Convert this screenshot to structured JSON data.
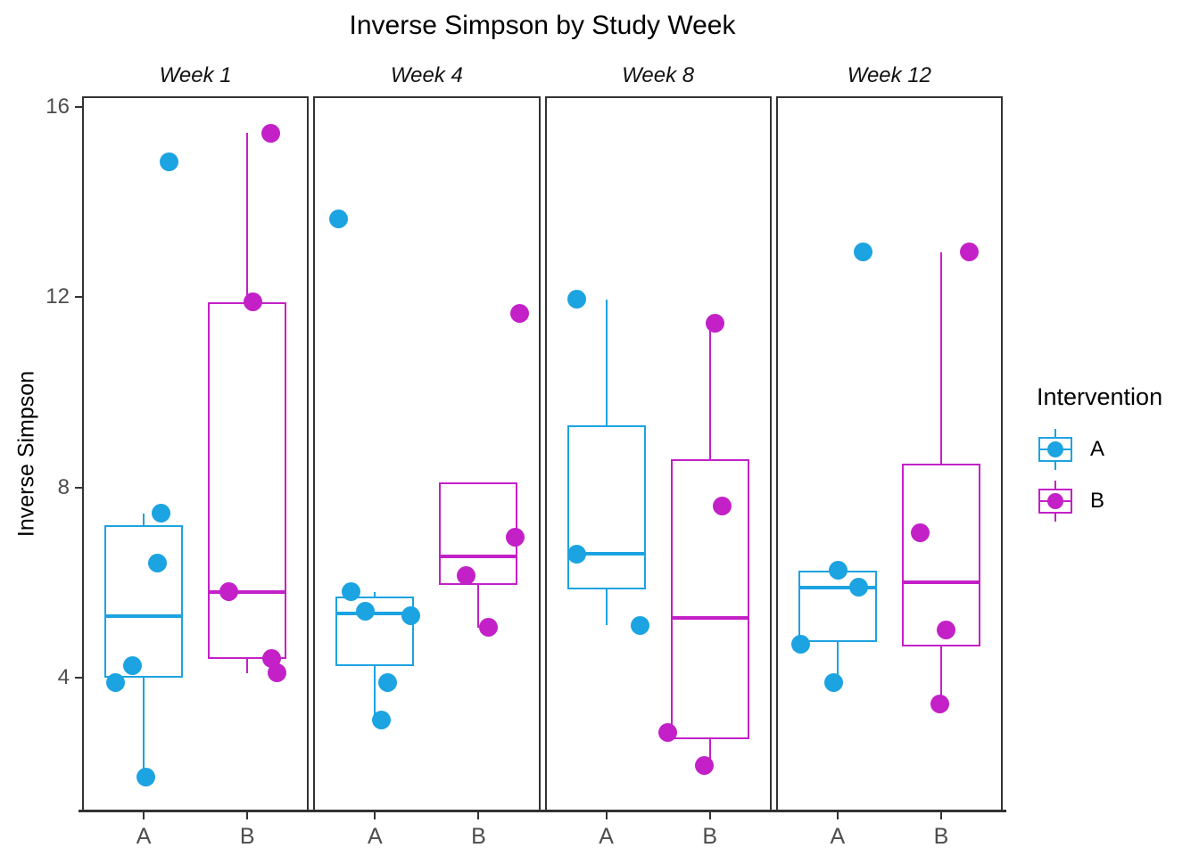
{
  "title": "Inverse Simpson by Study Week",
  "y_axis": {
    "label": "Inverse Simpson",
    "ticks": [
      16,
      12,
      8,
      4
    ]
  },
  "x_axis": {
    "categories": [
      "A",
      "B"
    ]
  },
  "legend": {
    "title": "Intervention",
    "entries": [
      {
        "label": "A",
        "color": "#1CA3E1"
      },
      {
        "label": "B",
        "color": "#C320C8"
      }
    ]
  },
  "colors": {
    "intervention_a": "#1CA3E1",
    "intervention_b": "#C320C8",
    "panel_border": "#333333",
    "axis_text": "#4d4d4d"
  },
  "chart_data": {
    "type": "boxplot",
    "title": "Inverse Simpson by Study Week",
    "xlabel": "",
    "ylabel": "Inverse Simpson",
    "yticks": [
      16,
      12,
      8,
      4
    ],
    "ylim": [
      1.2,
      16.25
    ],
    "grid": "off",
    "legend_position": "right",
    "legend_title": "Intervention",
    "x_categories": [
      "A",
      "B"
    ],
    "facets": [
      {
        "label": "Week 1",
        "groups": [
          {
            "name": "A",
            "box": {
              "min": 1.9,
              "q1": 4.0,
              "median": 5.3,
              "q3": 7.2,
              "max": 7.45
            },
            "points": [
              {
                "v": 14.85,
                "jx": 28
              },
              {
                "v": 7.45,
                "jx": 19
              },
              {
                "v": 6.4,
                "jx": 15
              },
              {
                "v": 4.25,
                "jx": -13
              },
              {
                "v": 3.9,
                "jx": -32
              },
              {
                "v": 1.9,
                "jx": 2
              }
            ]
          },
          {
            "name": "B",
            "box": {
              "min": 4.1,
              "q1": 4.4,
              "median": 5.8,
              "q3": 11.9,
              "max": 15.45
            },
            "points": [
              {
                "v": 15.45,
                "jx": 26
              },
              {
                "v": 11.9,
                "jx": 6
              },
              {
                "v": 5.8,
                "jx": -21
              },
              {
                "v": 4.4,
                "jx": 27
              },
              {
                "v": 4.1,
                "jx": 33
              }
            ]
          }
        ]
      },
      {
        "label": "Week 4",
        "groups": [
          {
            "name": "A",
            "box": {
              "min": 3.1,
              "q1": 4.25,
              "median": 5.35,
              "q3": 5.7,
              "max": 5.8
            },
            "points": [
              {
                "v": 13.65,
                "jx": -41
              },
              {
                "v": 5.8,
                "jx": -27
              },
              {
                "v": 5.4,
                "jx": -11
              },
              {
                "v": 5.3,
                "jx": 40
              },
              {
                "v": 3.9,
                "jx": 14
              },
              {
                "v": 3.1,
                "jx": 7
              }
            ]
          },
          {
            "name": "B",
            "box": {
              "min": 5.05,
              "q1": 5.95,
              "median": 6.55,
              "q3": 8.1,
              "max": 8.1
            },
            "points": [
              {
                "v": 11.65,
                "jx": 46
              },
              {
                "v": 6.95,
                "jx": 41
              },
              {
                "v": 6.15,
                "jx": -14
              },
              {
                "v": 5.05,
                "jx": 11
              }
            ]
          }
        ]
      },
      {
        "label": "Week 8",
        "groups": [
          {
            "name": "A",
            "box": {
              "min": 5.1,
              "q1": 5.85,
              "median": 6.6,
              "q3": 9.3,
              "max": 11.95
            },
            "points": [
              {
                "v": 11.95,
                "jx": -33
              },
              {
                "v": 6.6,
                "jx": -33
              },
              {
                "v": 5.1,
                "jx": 38
              }
            ]
          },
          {
            "name": "B",
            "box": {
              "min": 2.15,
              "q1": 2.7,
              "median": 5.25,
              "q3": 8.6,
              "max": 11.45
            },
            "points": [
              {
                "v": 11.45,
                "jx": 6
              },
              {
                "v": 7.6,
                "jx": 14
              },
              {
                "v": 2.85,
                "jx": -47
              },
              {
                "v": 2.15,
                "jx": -6
              }
            ]
          }
        ]
      },
      {
        "label": "Week 12",
        "groups": [
          {
            "name": "A",
            "box": {
              "min": 3.9,
              "q1": 4.75,
              "median": 5.9,
              "q3": 6.25,
              "max": 6.25
            },
            "points": [
              {
                "v": 12.95,
                "jx": 29
              },
              {
                "v": 6.25,
                "jx": 1
              },
              {
                "v": 5.9,
                "jx": 24
              },
              {
                "v": 4.7,
                "jx": -41
              },
              {
                "v": 3.9,
                "jx": -4
              }
            ]
          },
          {
            "name": "B",
            "box": {
              "min": 3.45,
              "q1": 4.65,
              "median": 6.0,
              "q3": 8.5,
              "max": 12.95
            },
            "points": [
              {
                "v": 12.95,
                "jx": 32
              },
              {
                "v": 7.05,
                "jx": -23
              },
              {
                "v": 5.0,
                "jx": 6
              },
              {
                "v": 3.45,
                "jx": -1
              }
            ]
          }
        ]
      }
    ]
  }
}
